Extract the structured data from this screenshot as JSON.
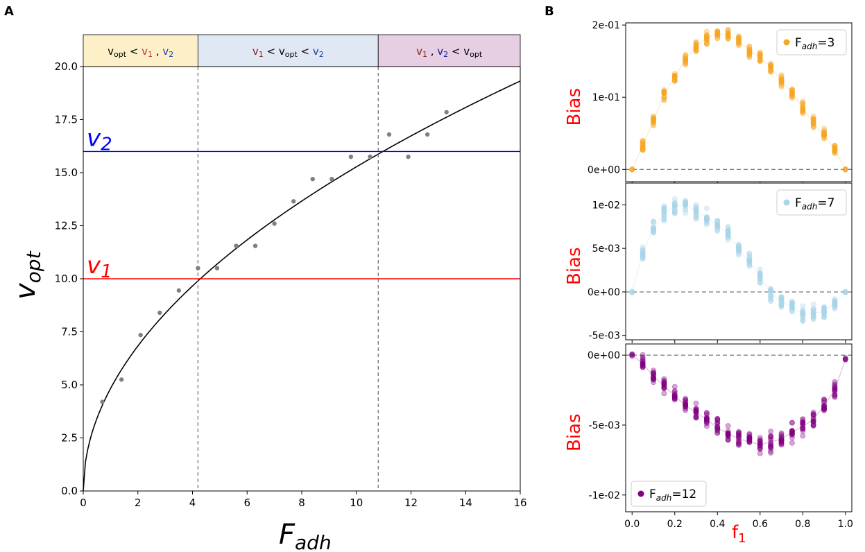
{
  "chart_data": [
    {
      "panel_label": "A",
      "type": "scatter",
      "xlabel": "F",
      "xlabel_sub": "adh",
      "ylabel": "v",
      "ylabel_sub": "opt",
      "xlim": [
        0,
        16
      ],
      "ylim": [
        0,
        20
      ],
      "xticks": [
        0,
        2,
        4,
        6,
        8,
        10,
        12,
        14,
        16
      ],
      "yticks": [
        0.0,
        2.5,
        5.0,
        7.5,
        10.0,
        12.5,
        15.0,
        17.5,
        20.0
      ],
      "ytick_labels": [
        "0.0",
        "2.5",
        "5.0",
        "7.5",
        "10.0",
        "12.5",
        "15.0",
        "17.5",
        "20.0"
      ],
      "points": {
        "x": [
          0.7,
          1.4,
          2.1,
          2.8,
          3.5,
          4.2,
          4.9,
          5.6,
          6.3,
          7.0,
          7.7,
          8.4,
          9.1,
          9.8,
          10.5,
          11.2,
          11.9,
          12.6,
          13.3
        ],
        "y": [
          4.2,
          5.25,
          7.35,
          8.4,
          9.45,
          10.5,
          10.5,
          11.55,
          11.55,
          12.6,
          13.65,
          14.7,
          14.7,
          15.75,
          15.75,
          16.8,
          15.75,
          16.8,
          17.85
        ],
        "color": "#808080"
      },
      "fit_curve": {
        "form": "y = 4.83 * sqrt(x)",
        "coef": 4.83,
        "color": "#000000"
      },
      "hlines": [
        {
          "name": "v",
          "sub": "1",
          "y": 10,
          "color": "#ff0000"
        },
        {
          "name": "v",
          "sub": "2",
          "y": 16,
          "color": "#0000ff"
        }
      ],
      "vlines": [
        4.2,
        10.8
      ],
      "regions": [
        {
          "from": 0,
          "to": 4.2,
          "color": "#fdf0c8",
          "label": [
            {
              "t": "v",
              "c": "#000000"
            },
            {
              "t": "opt",
              "c": "#000000",
              "sub": true
            },
            {
              "t": " < ",
              "c": "#000000"
            },
            {
              "t": "v",
              "c": "#c0392b"
            },
            {
              "t": "1",
              "c": "#c0392b",
              "sub": true
            },
            {
              "t": " , ",
              "c": "#000000"
            },
            {
              "t": "v",
              "c": "#1f3fa8"
            },
            {
              "t": "2",
              "c": "#1f3fa8",
              "sub": true
            }
          ]
        },
        {
          "from": 4.2,
          "to": 10.8,
          "color": "#e0e9f3",
          "label": [
            {
              "t": "v",
              "c": "#8b1a1a"
            },
            {
              "t": "1",
              "c": "#8b1a1a",
              "sub": true
            },
            {
              "t": " < ",
              "c": "#000000"
            },
            {
              "t": "v",
              "c": "#000000"
            },
            {
              "t": "opt",
              "c": "#000000",
              "sub": true
            },
            {
              "t": " <  ",
              "c": "#000000"
            },
            {
              "t": "v",
              "c": "#1f3fa8"
            },
            {
              "t": "2",
              "c": "#1f3fa8",
              "sub": true
            }
          ]
        },
        {
          "from": 10.8,
          "to": 16,
          "color": "#e6cfe3",
          "label": [
            {
              "t": "v",
              "c": "#8b1a1a"
            },
            {
              "t": "1",
              "c": "#8b1a1a",
              "sub": true
            },
            {
              "t": " , ",
              "c": "#000000"
            },
            {
              "t": "v",
              "c": "#1a1a8b"
            },
            {
              "t": "2",
              "c": "#1a1a8b",
              "sub": true
            },
            {
              "t": " < ",
              "c": "#000000"
            },
            {
              "t": "v",
              "c": "#000000"
            },
            {
              "t": "opt",
              "c": "#000000",
              "sub": true
            }
          ]
        }
      ]
    },
    {
      "panel_label": "B",
      "type": "scatter",
      "xlabel": "f",
      "xlabel_sub": "1",
      "xlabel_color": "#ff0000",
      "xlim": [
        -0.03,
        1.03
      ],
      "xticks": [
        0.0,
        0.2,
        0.4,
        0.6,
        0.8,
        1.0
      ],
      "xtick_labels": [
        "0.0",
        "0.2",
        "0.4",
        "0.6",
        "0.8",
        "1.0"
      ],
      "x_values": [
        0,
        0.05,
        0.1,
        0.15,
        0.2,
        0.25,
        0.3,
        0.35,
        0.4,
        0.45,
        0.5,
        0.55,
        0.6,
        0.65,
        0.7,
        0.75,
        0.8,
        0.85,
        0.9,
        0.95,
        1.0
      ],
      "subplots": [
        {
          "ylabel": "Bias",
          "ylabel_color": "#ff0000",
          "legend": {
            "prefix": "F",
            "sub": "adh",
            "suffix": "=3",
            "position": "top-right"
          },
          "color": "#f5a623",
          "ylim": [
            -0.017,
            0.203
          ],
          "yticks": [
            0,
            0.1,
            0.2
          ],
          "ytick_labels": [
            "0e+00",
            "1e-01",
            "2e-01"
          ],
          "means": [
            0,
            0.033,
            0.068,
            0.104,
            0.128,
            0.152,
            0.171,
            0.182,
            0.188,
            0.186,
            0.178,
            0.165,
            0.155,
            0.142,
            0.122,
            0.106,
            0.085,
            0.064,
            0.047,
            0.028,
            0
          ],
          "spread": 0.011
        },
        {
          "ylabel": "Bias",
          "ylabel_color": "#ff0000",
          "legend": {
            "prefix": "F",
            "sub": "adh",
            "suffix": "=7",
            "position": "top-right"
          },
          "color": "#a8d5e8",
          "ylim": [
            -0.0055,
            0.0125
          ],
          "yticks": [
            -0.005,
            0,
            0.005,
            0.01
          ],
          "ytick_labels": [
            "-5e-03",
            "0e+00",
            "5e-03",
            "1e-02"
          ],
          "means": [
            0,
            0.0045,
            0.0073,
            0.0091,
            0.0098,
            0.0101,
            0.0092,
            0.0086,
            0.0076,
            0.0068,
            0.0049,
            0.0034,
            0.0018,
            -0.0002,
            -0.0011,
            -0.0017,
            -0.0026,
            -0.0024,
            -0.0023,
            -0.0012,
            0
          ],
          "spread": 0.0012
        },
        {
          "ylabel": "Bias",
          "ylabel_color": "#ff0000",
          "legend": {
            "prefix": "F",
            "sub": "adh",
            "suffix": "=12",
            "position": "bottom-left"
          },
          "color": "#800080",
          "ylim": [
            -0.0112,
            0.0008
          ],
          "yticks": [
            -0.01,
            -0.005,
            0
          ],
          "ytick_labels": [
            "-1e-02",
            "-5e-03",
            "0e+00"
          ],
          "means": [
            0,
            -0.0006,
            -0.0015,
            -0.0022,
            -0.0029,
            -0.0036,
            -0.0041,
            -0.0046,
            -0.0052,
            -0.0056,
            -0.006,
            -0.0062,
            -0.0064,
            -0.0062,
            -0.006,
            -0.0055,
            -0.0051,
            -0.0046,
            -0.0036,
            -0.0025,
            -0.0003
          ],
          "spread": 0.0009
        }
      ]
    }
  ]
}
